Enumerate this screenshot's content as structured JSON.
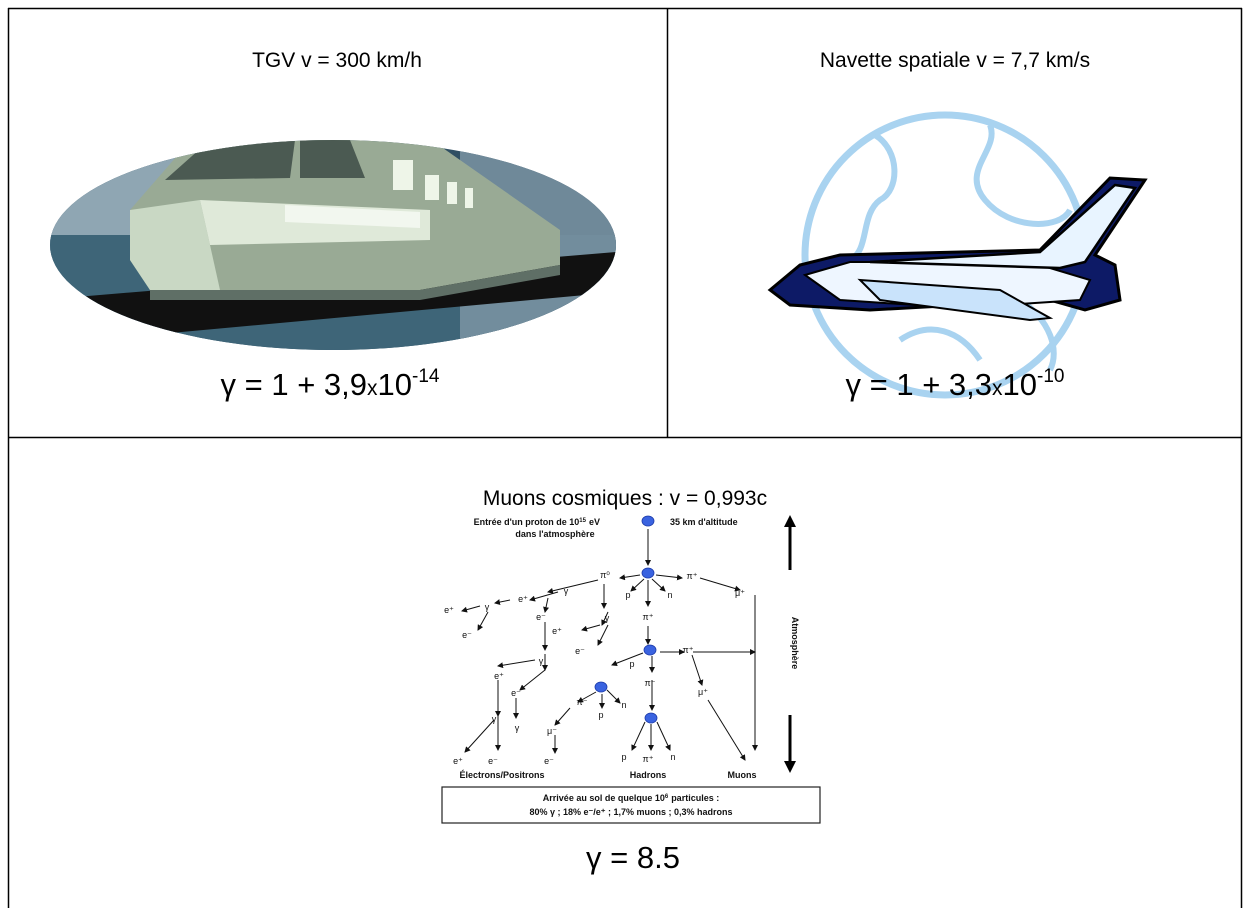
{
  "cells": [
    {
      "title": "TGV v = 300 km/h",
      "gamma": {
        "base": "γ = 1 + 3,9",
        "times": "x",
        "power": "10",
        "exponent": "-14"
      }
    },
    {
      "title": "Navette spatiale v = 7,7 km/s",
      "gamma": {
        "base": "γ = 1 + 3,3",
        "times": "x",
        "power": "10",
        "exponent": "-10"
      }
    },
    {
      "title": "Muons cosmiques : v = 0,993c",
      "gamma": "γ = 8.5",
      "diagram": {
        "entry": {
          "text": "Entrée d'un proton de 10",
          "exponent": "15",
          "unit": "eV"
        },
        "entry_line2": "dans l'atmosphère",
        "altitude": "35 km d'altitude",
        "axis_label": "Atmosphère",
        "groups": [
          "Électrons/Positrons",
          "Hadrons",
          "Muons"
        ],
        "particles": [
          "π⁰",
          "p",
          "n",
          "π⁺",
          "μ⁺",
          "π⁺",
          "γ",
          "e⁺",
          "γ",
          "e⁺",
          "e⁻",
          "γ",
          "e⁺",
          "e⁻",
          "e⁻",
          "γ",
          "e⁺",
          "e⁻",
          "γ",
          "p",
          "π⁻",
          "π⁺",
          "μ⁺",
          "p",
          "n",
          "π⁻",
          "μ⁻",
          "γ",
          "e⁺",
          "e⁻",
          "e⁻",
          "p",
          "π⁺",
          "n"
        ],
        "result": {
          "start": "Arrivée au sol de quelque 10",
          "exponent": "6",
          "end": "particules :",
          "line2": "80% γ ; 18% e⁻/e⁺ ; 1,7% muons ; 0,3% hadrons"
        }
      }
    }
  ]
}
